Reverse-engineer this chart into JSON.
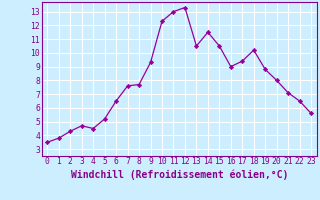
{
  "x": [
    0,
    1,
    2,
    3,
    4,
    5,
    6,
    7,
    8,
    9,
    10,
    11,
    12,
    13,
    14,
    15,
    16,
    17,
    18,
    19,
    20,
    21,
    22,
    23
  ],
  "y": [
    3.5,
    3.8,
    4.3,
    4.7,
    4.5,
    5.2,
    6.5,
    7.6,
    7.7,
    9.3,
    12.3,
    13.0,
    13.3,
    10.5,
    11.5,
    10.5,
    9.0,
    9.4,
    10.2,
    8.8,
    8.0,
    7.1,
    6.5,
    5.6
  ],
  "line_color": "#990099",
  "marker": "D",
  "marker_size": 2.2,
  "bg_color": "#cceeff",
  "grid_color": "#ffffff",
  "xlabel": "Windchill (Refroidissement éolien,°C)",
  "xlim": [
    -0.5,
    23.5
  ],
  "ylim": [
    2.5,
    13.7
  ],
  "yticks": [
    3,
    4,
    5,
    6,
    7,
    8,
    9,
    10,
    11,
    12,
    13
  ],
  "xticks": [
    0,
    1,
    2,
    3,
    4,
    5,
    6,
    7,
    8,
    9,
    10,
    11,
    12,
    13,
    14,
    15,
    16,
    17,
    18,
    19,
    20,
    21,
    22,
    23
  ],
  "tick_fontsize": 5.8,
  "xlabel_fontsize": 7.0,
  "tick_label_color": "#880088",
  "line_label_color": "#880088",
  "spine_color": "#880088"
}
